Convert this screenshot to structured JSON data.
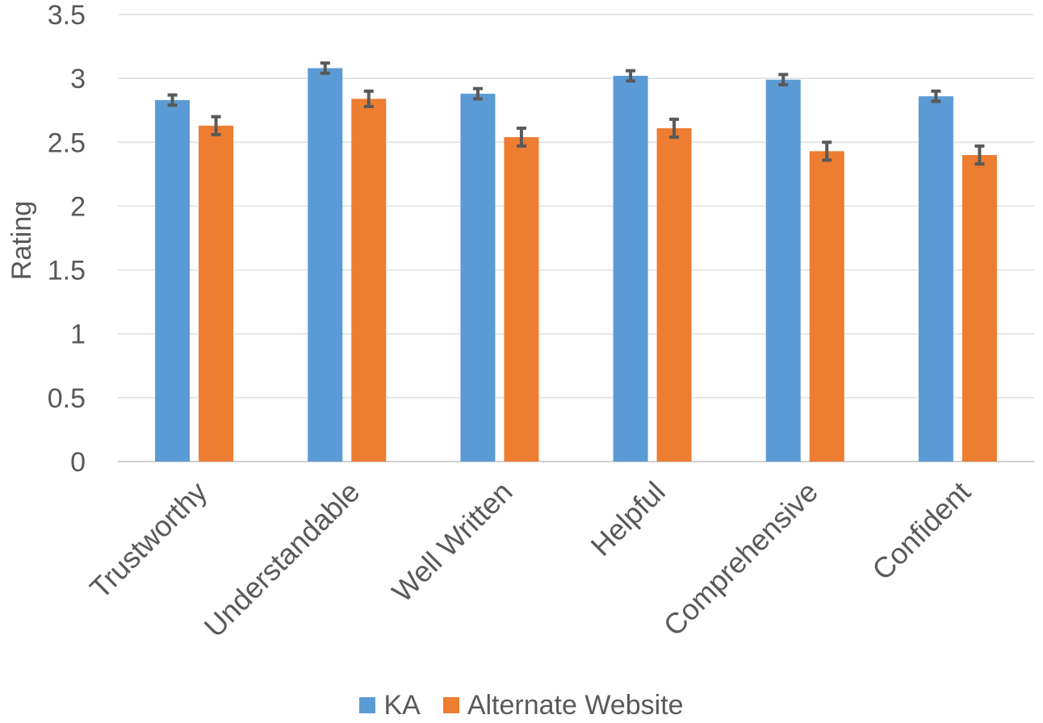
{
  "chart_data": {
    "type": "bar",
    "title": "",
    "xlabel": "",
    "ylabel": "Rating",
    "ylim": [
      0,
      3.5
    ],
    "yticks": [
      "0",
      "0.5",
      "1",
      "1.5",
      "2",
      "2.5",
      "3",
      "3.5"
    ],
    "grid": true,
    "legend_position": "bottom",
    "categories": [
      "Trustworthy",
      "Understandable",
      "Well Written",
      "Helpful",
      "Comprehensive",
      "Confident"
    ],
    "series": [
      {
        "name": "KA",
        "color": "#5B9BD5",
        "values": [
          2.83,
          3.08,
          2.88,
          3.02,
          2.99,
          2.86
        ],
        "error": [
          0.04,
          0.04,
          0.04,
          0.04,
          0.04,
          0.04
        ]
      },
      {
        "name": "Alternate Website",
        "color": "#ED7D31",
        "values": [
          2.63,
          2.84,
          2.54,
          2.61,
          2.43,
          2.4
        ],
        "error": [
          0.07,
          0.06,
          0.07,
          0.07,
          0.07,
          0.07
        ]
      }
    ],
    "error_bar_color": "#595959"
  }
}
